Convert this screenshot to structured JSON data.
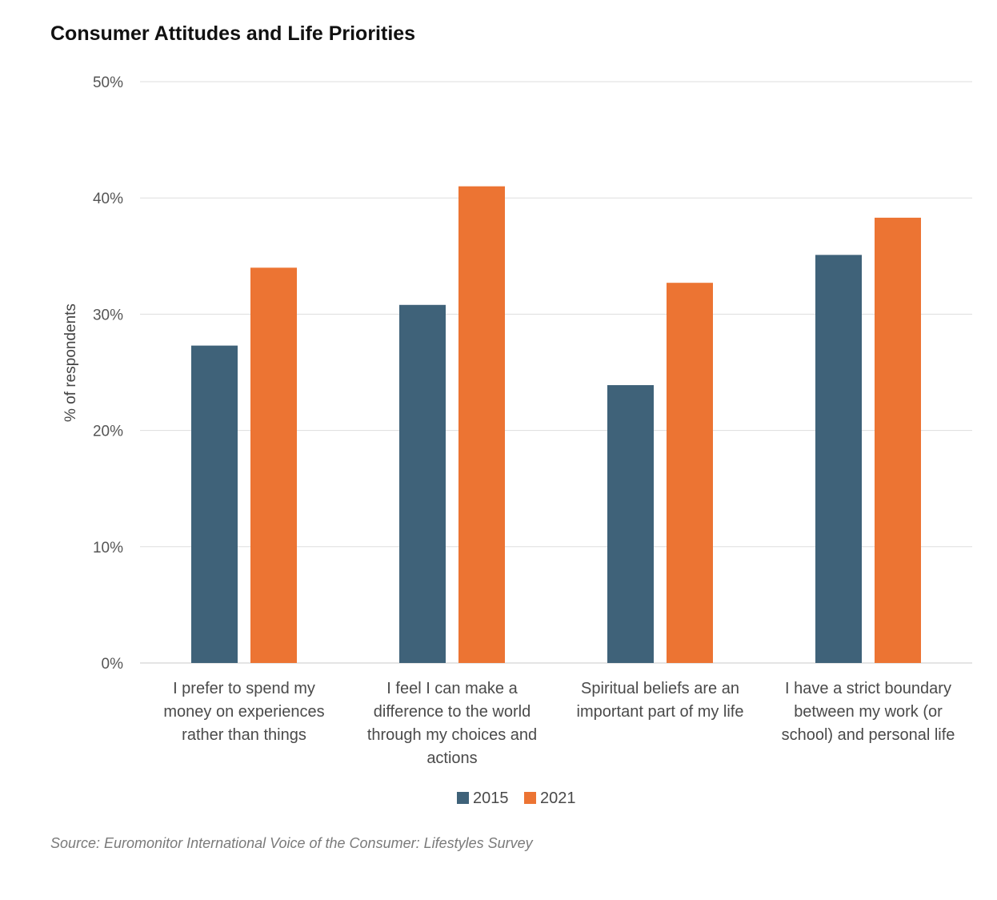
{
  "chart_data": {
    "type": "bar",
    "title": "Consumer Attitudes and Life Priorities",
    "ylabel": "% of respondents",
    "xlabel": "",
    "ylim": [
      0,
      50
    ],
    "yticks": [
      0,
      10,
      20,
      30,
      40,
      50
    ],
    "ytick_labels": [
      "0%",
      "10%",
      "20%",
      "30%",
      "40%",
      "50%"
    ],
    "grid": true,
    "legend_position": "bottom-center",
    "categories": [
      [
        "I prefer to spend my",
        "money on experiences",
        "rather than things"
      ],
      [
        "I feel I can make a",
        "difference to the world",
        "through my choices and",
        "actions"
      ],
      [
        "Spiritual beliefs are an",
        "important part of my life"
      ],
      [
        "I have a strict boundary",
        "between my work (or",
        "school) and personal life"
      ]
    ],
    "series": [
      {
        "name": "2015",
        "color": "#3f6279",
        "values": [
          27.3,
          30.8,
          23.9,
          35.1
        ]
      },
      {
        "name": "2021",
        "color": "#ec7433",
        "values": [
          34.0,
          41.0,
          32.7,
          38.3
        ]
      }
    ],
    "source": "Source: Euromonitor International Voice of the Consumer: Lifestyles Survey"
  }
}
